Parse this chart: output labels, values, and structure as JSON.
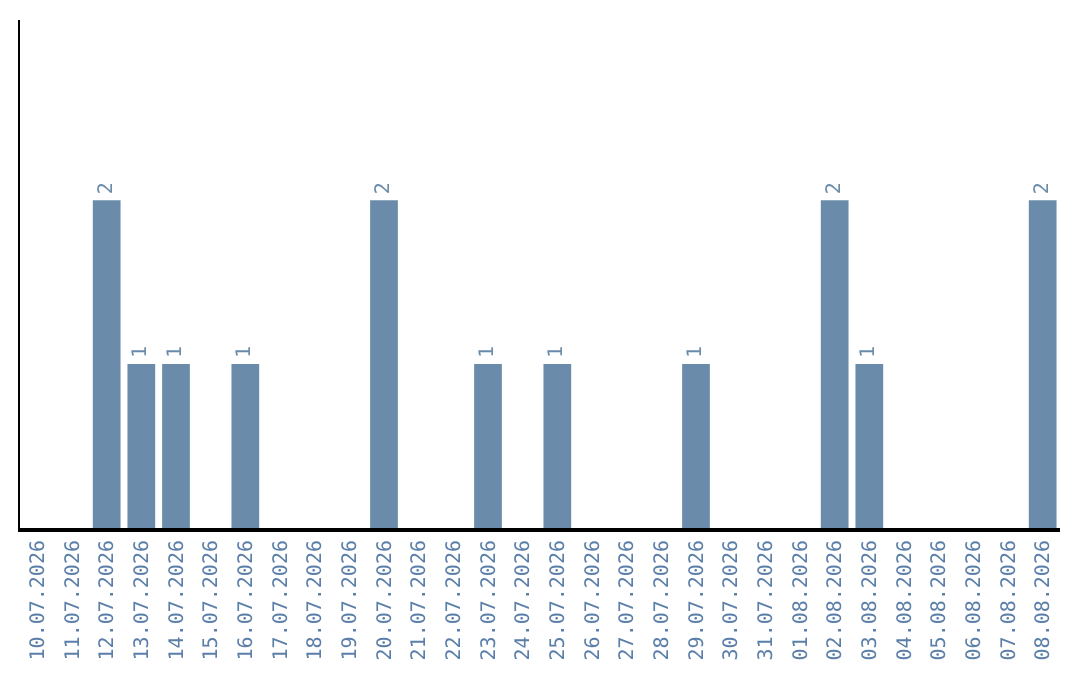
{
  "chart_data": {
    "type": "bar",
    "categories": [
      "10.07.2026",
      "11.07.2026",
      "12.07.2026",
      "13.07.2026",
      "14.07.2026",
      "15.07.2026",
      "16.07.2026",
      "17.07.2026",
      "18.07.2026",
      "19.07.2026",
      "20.07.2026",
      "21.07.2026",
      "22.07.2026",
      "23.07.2026",
      "24.07.2026",
      "25.07.2026",
      "26.07.2026",
      "27.07.2026",
      "28.07.2026",
      "29.07.2026",
      "30.07.2026",
      "31.07.2026",
      "01.08.2026",
      "02.08.2026",
      "03.08.2026",
      "04.08.2026",
      "05.08.2026",
      "06.08.2026",
      "07.08.2026",
      "08.08.2026"
    ],
    "values": [
      0,
      0,
      2,
      1,
      1,
      0,
      1,
      0,
      0,
      0,
      2,
      0,
      0,
      1,
      0,
      1,
      0,
      0,
      0,
      1,
      0,
      0,
      0,
      2,
      1,
      0,
      0,
      0,
      0,
      2
    ],
    "value_labels": [
      null,
      null,
      "2",
      "1",
      "1",
      null,
      "1",
      null,
      null,
      null,
      "2",
      null,
      null,
      "1",
      null,
      "1",
      null,
      null,
      null,
      "1",
      null,
      null,
      null,
      "2",
      "1",
      null,
      null,
      null,
      null,
      "2"
    ],
    "color": "#6a8caa",
    "ylim": [
      0,
      3.1
    ],
    "tick_labels": "x",
    "legend": false
  }
}
